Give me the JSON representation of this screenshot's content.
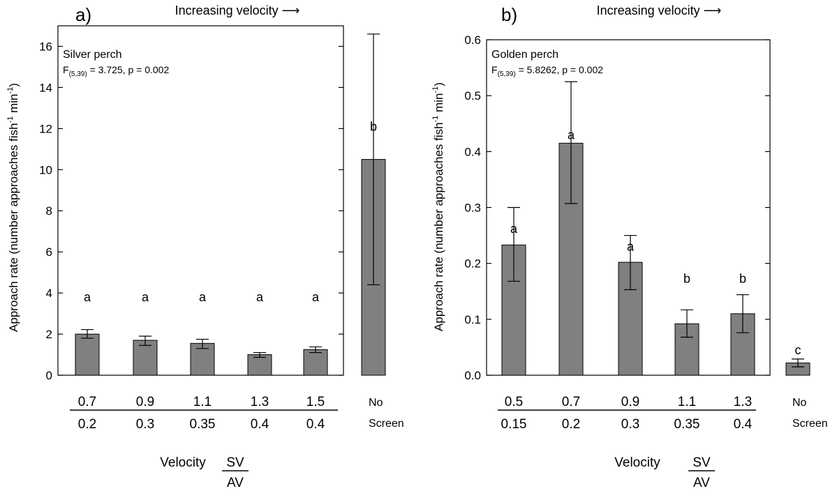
{
  "chart_data": [
    {
      "type": "bar",
      "panel_label": "a)",
      "title": "Increasing velocity ⟶",
      "species": "Silver perch",
      "stat_prefix": "F",
      "stat_subscript": "(5,39)",
      "stat_suffix": " = 3.725, p = 0.002",
      "ylabel": "Approach rate (number approaches fish",
      "ylabel_sup1": "-1",
      "ylabel_mid": " min",
      "ylabel_sup2": "-1",
      "ylabel_end": ")",
      "ylim": [
        0,
        17
      ],
      "yticks": [
        0,
        2,
        4,
        6,
        8,
        10,
        12,
        14,
        16
      ],
      "categories_sv": [
        "0.7",
        "0.9",
        "1.1",
        "1.3",
        "1.5",
        "No"
      ],
      "categories_av": [
        "0.2",
        "0.3",
        "0.35",
        "0.4",
        "0.4",
        "Screen"
      ],
      "values": [
        2.0,
        1.7,
        1.55,
        1.0,
        1.25,
        10.5
      ],
      "err_low": [
        1.8,
        1.45,
        1.3,
        0.87,
        1.1,
        4.4
      ],
      "err_high": [
        2.22,
        1.9,
        1.75,
        1.1,
        1.38,
        16.6
      ],
      "letters": [
        "a",
        "a",
        "a",
        "a",
        "a",
        "b"
      ],
      "letter_y": [
        3.8,
        3.8,
        3.8,
        3.8,
        3.8,
        12.1
      ],
      "xlabel": "Velocity",
      "xlabel_num": "SV",
      "xlabel_den": "AV",
      "bar_color": "#808080"
    },
    {
      "type": "bar",
      "panel_label": "b)",
      "title": "Increasing velocity ⟶",
      "species": "Golden perch",
      "stat_prefix": "F",
      "stat_subscript": "(5,39)",
      "stat_suffix": " = 5.8262, p = 0.002",
      "ylabel": "Approach rate (number approaches fish",
      "ylabel_sup1": "-1",
      "ylabel_mid": " min",
      "ylabel_sup2": "-1",
      "ylabel_end": ")",
      "ylim": [
        0,
        0.6
      ],
      "yticks": [
        0.0,
        0.1,
        0.2,
        0.3,
        0.4,
        0.5,
        0.6
      ],
      "ytick_labels": [
        "0.0",
        "0.1",
        "0.2",
        "0.3",
        "0.4",
        "0.5",
        "0.6"
      ],
      "categories_sv": [
        "0.5",
        "0.7",
        "0.9",
        "1.1",
        "1.3",
        "No"
      ],
      "categories_av": [
        "0.15",
        "0.2",
        "0.3",
        "0.35",
        "0.4",
        "Screen"
      ],
      "values": [
        0.233,
        0.415,
        0.202,
        0.092,
        0.11,
        0.022
      ],
      "err_low": [
        0.168,
        0.307,
        0.153,
        0.068,
        0.076,
        0.015
      ],
      "err_high": [
        0.3,
        0.525,
        0.25,
        0.117,
        0.144,
        0.029
      ],
      "letters": [
        "a",
        "a",
        "a",
        "b",
        "b",
        "c"
      ],
      "letter_y": [
        0.262,
        0.43,
        0.23,
        0.173,
        0.173,
        0.045
      ],
      "xlabel": "Velocity",
      "xlabel_num": "SV",
      "xlabel_den": "AV",
      "bar_color": "#808080"
    }
  ]
}
